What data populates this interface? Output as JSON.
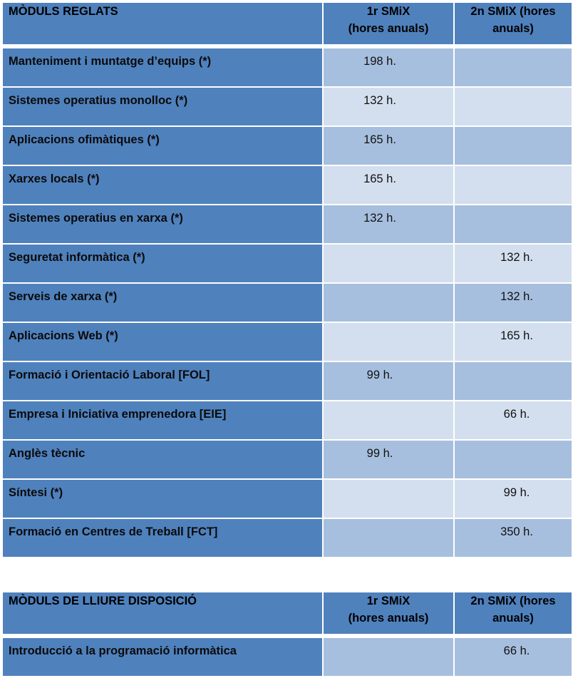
{
  "table1": {
    "headers": [
      "MÒDULS REGLATS",
      "1r SMiX (hores anuals)",
      "2n SMiX (hores anuals)"
    ],
    "header_lines": {
      "col2": [
        "1r SMiX",
        "(hores anuals)"
      ],
      "col3": [
        "2n SMiX (hores",
        "anuals)"
      ]
    },
    "rows": [
      {
        "name": "Manteniment i muntatge d’equips (*)",
        "y1": "198 h.",
        "y2": ""
      },
      {
        "name": "Sistemes operatius monolloc (*)",
        "y1": "132 h.",
        "y2": ""
      },
      {
        "name": "Aplicacions ofimàtiques (*)",
        "y1": "165 h.",
        "y2": ""
      },
      {
        "name": "Xarxes locals (*)",
        "y1": "165 h.",
        "y2": ""
      },
      {
        "name": "Sistemes operatius en xarxa (*)",
        "y1": "132 h.",
        "y2": ""
      },
      {
        "name": "Seguretat informàtica (*)",
        "y1": "",
        "y2": "132 h."
      },
      {
        "name": "Serveis de xarxa (*)",
        "y1": "",
        "y2": "132 h."
      },
      {
        "name": "Aplicacions Web (*)",
        "y1": "",
        "y2": "165 h."
      },
      {
        "name": "Formació i Orientació Laboral [FOL]",
        "y1": "99 h.",
        "y2": ""
      },
      {
        "name": "Empresa i Iniciativa emprenedora [EIE]",
        "y1": "",
        "y2": "66 h."
      },
      {
        "name": "Anglès tècnic",
        "y1": "99 h.",
        "y2": ""
      },
      {
        "name": "Síntesi (*)",
        "y1": "",
        "y2": "99 h."
      },
      {
        "name": "Formació en Centres de Treball [FCT]",
        "y1": "",
        "y2": "350 h."
      }
    ]
  },
  "table2": {
    "headers": [
      "MÒDULS DE LLIURE DISPOSICIÓ",
      "1r SMiX (hores anuals)",
      "2n SMiX (hores anuals)"
    ],
    "header_lines": {
      "col2": [
        "1r SMiX",
        "(hores anuals)"
      ],
      "col3": [
        "2n SMiX (hores",
        "anuals)"
      ]
    },
    "rows": [
      {
        "name": "Introducció a la programació informàtica",
        "y1": "",
        "y2": "66 h."
      }
    ]
  },
  "colors": {
    "header_bg": "#4f81bd",
    "row_dark": "#a7bfde",
    "row_light": "#d3dfee"
  }
}
